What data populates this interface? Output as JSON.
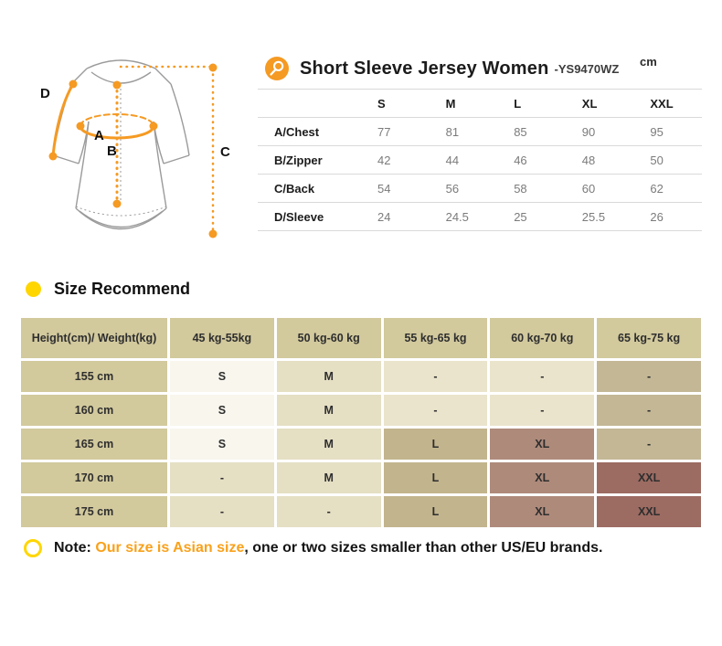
{
  "colors": {
    "accent_orange": "#F59A23",
    "yellow": "#FFD600",
    "note_orange": "#F9A11B",
    "line_gray": "#d9d9d9",
    "sketch_gray": "#9b9b9b"
  },
  "palette": {
    "khaki": "#D2C99D",
    "cream": "#F8F6ED",
    "light": "#E5DFC4",
    "pale": "#EAE4CC",
    "tan": "#C3B795",
    "mid": "#C2B48D",
    "mauve": "#AE8A7B",
    "dark": "#9C6B62"
  },
  "diagram": {
    "labels": {
      "a": "A",
      "b": "B",
      "c": "C",
      "d": "D"
    }
  },
  "measure": {
    "title": "Short Sleeve Jersey Women",
    "model": "-YS9470WZ",
    "unit": "cm",
    "columns": [
      "S",
      "M",
      "L",
      "XL",
      "XXL"
    ],
    "rows": [
      {
        "label": "A/Chest",
        "values": [
          "77",
          "81",
          "85",
          "90",
          "95"
        ]
      },
      {
        "label": "B/Zipper",
        "values": [
          "42",
          "44",
          "46",
          "48",
          "50"
        ]
      },
      {
        "label": "C/Back",
        "values": [
          "54",
          "56",
          "58",
          "60",
          "62"
        ]
      },
      {
        "label": "D/Sleeve",
        "values": [
          "24",
          "24.5",
          "25",
          "25.5",
          "26"
        ]
      }
    ]
  },
  "recommend": {
    "heading": "Size Recommend",
    "header": [
      "Height(cm)/ Weight(kg)",
      "45 kg-55kg",
      "50 kg-60 kg",
      "55 kg-65 kg",
      "60 kg-70 kg",
      "65 kg-75 kg"
    ],
    "rows": [
      {
        "height": "155 cm",
        "cells": [
          {
            "t": "S",
            "bg": "cream"
          },
          {
            "t": "M",
            "bg": "light"
          },
          {
            "t": "-",
            "bg": "pale"
          },
          {
            "t": "-",
            "bg": "pale"
          },
          {
            "t": "-",
            "bg": "tan"
          }
        ]
      },
      {
        "height": "160 cm",
        "cells": [
          {
            "t": "S",
            "bg": "cream"
          },
          {
            "t": "M",
            "bg": "light"
          },
          {
            "t": "-",
            "bg": "pale"
          },
          {
            "t": "-",
            "bg": "pale"
          },
          {
            "t": "-",
            "bg": "tan"
          }
        ]
      },
      {
        "height": "165 cm",
        "cells": [
          {
            "t": "S",
            "bg": "cream"
          },
          {
            "t": "M",
            "bg": "light"
          },
          {
            "t": "L",
            "bg": "mid"
          },
          {
            "t": "XL",
            "bg": "mauve"
          },
          {
            "t": "-",
            "bg": "tan"
          }
        ]
      },
      {
        "height": "170 cm",
        "cells": [
          {
            "t": "-",
            "bg": "light"
          },
          {
            "t": "M",
            "bg": "light"
          },
          {
            "t": "L",
            "bg": "mid"
          },
          {
            "t": "XL",
            "bg": "mauve"
          },
          {
            "t": "XXL",
            "bg": "dark"
          }
        ]
      },
      {
        "height": "175 cm",
        "cells": [
          {
            "t": "-",
            "bg": "light"
          },
          {
            "t": "-",
            "bg": "light"
          },
          {
            "t": "L",
            "bg": "mid"
          },
          {
            "t": "XL",
            "bg": "mauve"
          },
          {
            "t": "XXL",
            "bg": "dark"
          }
        ]
      }
    ]
  },
  "note": {
    "prefix": "Note: ",
    "highlight": "Our size is Asian size",
    "rest": ", one or two sizes smaller than other US/EU brands."
  }
}
